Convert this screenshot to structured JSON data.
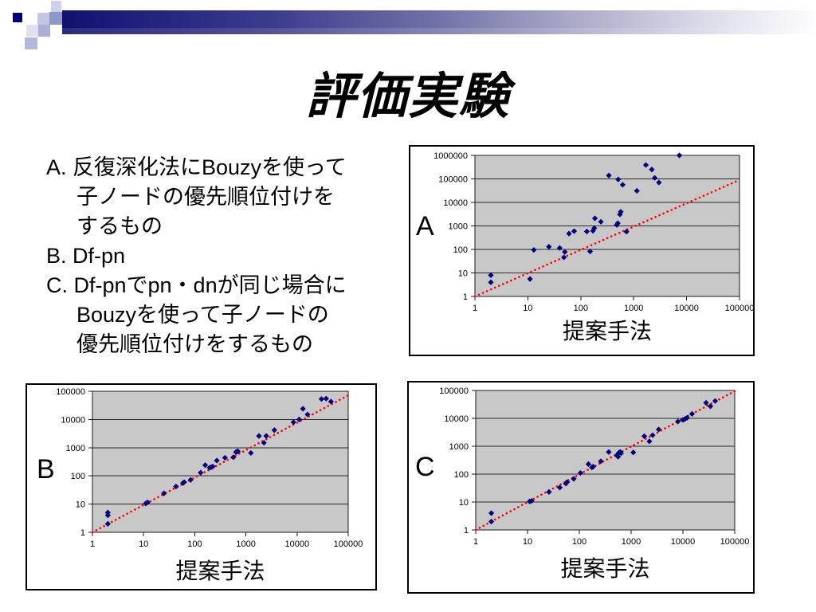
{
  "slide": {
    "title": "評価実験"
  },
  "notes": {
    "lines": [
      {
        "segments": [
          {
            "text": "A. "
          },
          {
            "text": "反復深化法に"
          },
          {
            "text": "Bouzy"
          },
          {
            "text": "を使って"
          }
        ]
      },
      {
        "segments": [
          {
            "text": "子ノードの優先順位付けを"
          }
        ]
      },
      {
        "segments": [
          {
            "text": "するもの"
          }
        ]
      },
      {
        "segments": [
          {
            "text": "B. Df-pn"
          }
        ]
      },
      {
        "segments": [
          {
            "text": "C. Df-pnでpn・dnが同じ場合に"
          }
        ]
      },
      {
        "segments": [
          {
            "text": "Bouzyを使って子ノードの"
          }
        ]
      },
      {
        "segments": [
          {
            "text": "優先順位付けをするもの"
          }
        ]
      }
    ]
  },
  "chart_data": [
    {
      "id": "A",
      "label": "A",
      "type": "scatter",
      "xlabel": "提案手法",
      "x_scale": "log",
      "y_scale": "log",
      "xlim": [
        1,
        100000
      ],
      "ylim": [
        1,
        1000000
      ],
      "x_ticks": [
        1,
        10,
        100,
        1000,
        10000,
        100000
      ],
      "y_ticks": [
        1,
        10,
        100,
        1000,
        10000,
        100000,
        1000000
      ],
      "grid": "horizontal-major",
      "plot_bg": "#c8c8c8",
      "grid_color": "#2a2a2a",
      "marker": "diamond",
      "marker_color": "#000080",
      "refline": {
        "x1": 1,
        "y1": 1,
        "x2": 100000,
        "y2": 90000,
        "color": "#ff0000",
        "style": "dotted"
      },
      "points": [
        [
          2,
          8
        ],
        [
          2,
          4
        ],
        [
          11,
          5.5
        ],
        [
          13,
          95
        ],
        [
          25,
          130
        ],
        [
          40,
          115
        ],
        [
          48,
          46
        ],
        [
          50,
          78
        ],
        [
          60,
          470
        ],
        [
          75,
          600
        ],
        [
          130,
          580
        ],
        [
          150,
          82
        ],
        [
          170,
          620
        ],
        [
          180,
          800
        ],
        [
          185,
          2100
        ],
        [
          240,
          1500
        ],
        [
          340,
          140000
        ],
        [
          480,
          1100
        ],
        [
          500,
          1300
        ],
        [
          510,
          95000
        ],
        [
          550,
          3100
        ],
        [
          570,
          4000
        ],
        [
          620,
          56000
        ],
        [
          730,
          570
        ],
        [
          1150,
          31000
        ],
        [
          1700,
          390000
        ],
        [
          2200,
          250000
        ],
        [
          2500,
          110000
        ],
        [
          3000,
          70000
        ],
        [
          7300,
          1000000
        ]
      ]
    },
    {
      "id": "B",
      "label": "B",
      "type": "scatter",
      "xlabel": "提案手法",
      "x_scale": "log",
      "y_scale": "log",
      "xlim": [
        1,
        100000
      ],
      "ylim": [
        1,
        100000
      ],
      "x_ticks": [
        1,
        10,
        100,
        1000,
        10000,
        100000
      ],
      "y_ticks": [
        1,
        10,
        100,
        1000,
        10000,
        100000
      ],
      "grid": "horizontal-major",
      "plot_bg": "#c8c8c8",
      "grid_color": "#2a2a2a",
      "marker": "diamond",
      "marker_color": "#000080",
      "refline": {
        "x1": 1,
        "y1": 1,
        "x2": 100000,
        "y2": 72000,
        "color": "#ff0000",
        "style": "dotted"
      },
      "points": [
        [
          2,
          5
        ],
        [
          2,
          4
        ],
        [
          2,
          2
        ],
        [
          11,
          10.5
        ],
        [
          12,
          11.5
        ],
        [
          25,
          24
        ],
        [
          43,
          42
        ],
        [
          59,
          56
        ],
        [
          62,
          60
        ],
        [
          83,
          72
        ],
        [
          130,
          130
        ],
        [
          160,
          240
        ],
        [
          195,
          195
        ],
        [
          210,
          205
        ],
        [
          225,
          215
        ],
        [
          270,
          350
        ],
        [
          390,
          440
        ],
        [
          570,
          460
        ],
        [
          640,
          700
        ],
        [
          680,
          730
        ],
        [
          700,
          740
        ],
        [
          1250,
          650
        ],
        [
          1800,
          2600
        ],
        [
          2250,
          1500
        ],
        [
          2500,
          2600
        ],
        [
          3600,
          4200
        ],
        [
          8500,
          8000
        ],
        [
          11000,
          10000
        ],
        [
          13000,
          24000
        ],
        [
          16000,
          15000
        ],
        [
          30000,
          53000
        ],
        [
          37000,
          55000
        ],
        [
          46000,
          43000
        ]
      ]
    },
    {
      "id": "C",
      "label": "C",
      "type": "scatter",
      "xlabel": "提案手法",
      "x_scale": "log",
      "y_scale": "log",
      "xlim": [
        1,
        100000
      ],
      "ylim": [
        1,
        100000
      ],
      "x_ticks": [
        1,
        10,
        100,
        1000,
        10000,
        100000
      ],
      "y_ticks": [
        1,
        10,
        100,
        1000,
        10000,
        100000
      ],
      "grid": "horizontal-major",
      "plot_bg": "#c8c8c8",
      "grid_color": "#2a2a2a",
      "marker": "diamond",
      "marker_color": "#000080",
      "refline": {
        "x1": 1,
        "y1": 1,
        "x2": 100000,
        "y2": 95000,
        "color": "#ff0000",
        "style": "dotted"
      },
      "points": [
        [
          2,
          4
        ],
        [
          2,
          2
        ],
        [
          11,
          10.5
        ],
        [
          12,
          11
        ],
        [
          26,
          23
        ],
        [
          42,
          33
        ],
        [
          55,
          46
        ],
        [
          58,
          52
        ],
        [
          78,
          68
        ],
        [
          105,
          110
        ],
        [
          150,
          230
        ],
        [
          175,
          175
        ],
        [
          185,
          185
        ],
        [
          260,
          290
        ],
        [
          370,
          620
        ],
        [
          530,
          470
        ],
        [
          560,
          420
        ],
        [
          570,
          560
        ],
        [
          590,
          600
        ],
        [
          620,
          620
        ],
        [
          640,
          560
        ],
        [
          1100,
          600
        ],
        [
          1800,
          2300
        ],
        [
          2250,
          1500
        ],
        [
          2600,
          2500
        ],
        [
          3400,
          4000
        ],
        [
          8000,
          7700
        ],
        [
          10000,
          8800
        ],
        [
          11000,
          9600
        ],
        [
          12000,
          10500
        ],
        [
          15000,
          14500
        ],
        [
          28000,
          36000
        ],
        [
          34000,
          27000
        ],
        [
          42000,
          42000
        ]
      ]
    }
  ]
}
